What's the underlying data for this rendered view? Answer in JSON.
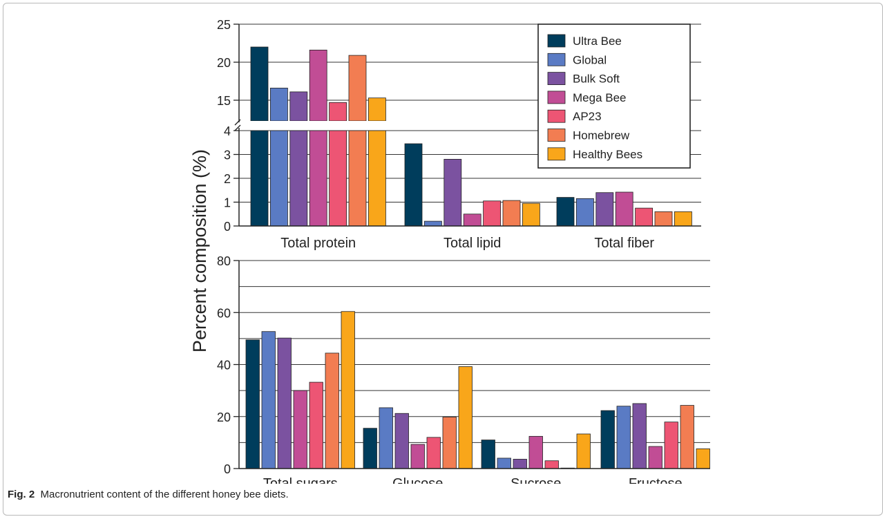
{
  "figure": {
    "caption_label": "Fig. 2",
    "caption_text": "Macronutrient content of the different honey bee diets."
  },
  "shared": {
    "ylabel": "Percent composition (%)",
    "series": [
      {
        "name": "Ultra Bee",
        "color": "#003d5c"
      },
      {
        "name": "Global",
        "color": "#5a7bc4"
      },
      {
        "name": "Bulk Soft",
        "color": "#7b52a0"
      },
      {
        "name": "Mega Bee",
        "color": "#c14d95"
      },
      {
        "name": "AP23",
        "color": "#ed5574"
      },
      {
        "name": "Homebrew",
        "color": "#f27d52"
      },
      {
        "name": "Healthy Bees",
        "color": "#f9a61a"
      }
    ],
    "legend_position": "top-right"
  },
  "chart_data": [
    {
      "type": "bar",
      "categories": [
        "Total protein",
        "Total lipid",
        "Total fiber"
      ],
      "y_axis_break": {
        "lower": [
          0,
          4
        ],
        "upper": [
          13,
          25
        ]
      },
      "lower_ticks": [
        "0",
        "1",
        "2",
        "3",
        "4"
      ],
      "upper_ticks": [
        "15",
        "20",
        "25"
      ],
      "grid": true,
      "series": [
        {
          "name": "Ultra Bee",
          "values": [
            22.0,
            3.45,
            1.2
          ]
        },
        {
          "name": "Global",
          "values": [
            16.6,
            0.2,
            1.15
          ]
        },
        {
          "name": "Bulk Soft",
          "values": [
            16.1,
            2.8,
            1.4
          ]
        },
        {
          "name": "Mega Bee",
          "values": [
            21.6,
            0.5,
            1.42
          ]
        },
        {
          "name": "AP23",
          "values": [
            14.7,
            1.05,
            0.75
          ]
        },
        {
          "name": "Homebrew",
          "values": [
            20.9,
            1.07,
            0.6
          ]
        },
        {
          "name": "Healthy Bees",
          "values": [
            15.3,
            0.95,
            0.6
          ]
        }
      ]
    },
    {
      "type": "bar",
      "categories": [
        "Total sugars",
        "Glucose",
        "Sucrose",
        "Fructose"
      ],
      "ylim": [
        0,
        80
      ],
      "ticks": [
        "0",
        "20",
        "40",
        "60",
        "80"
      ],
      "grid": true,
      "series": [
        {
          "name": "Ultra Bee",
          "values": [
            49.5,
            15.5,
            11.0,
            22.3
          ]
        },
        {
          "name": "Global",
          "values": [
            52.7,
            23.4,
            4.0,
            24.0
          ]
        },
        {
          "name": "Bulk Soft",
          "values": [
            50.2,
            21.2,
            3.6,
            25.0
          ]
        },
        {
          "name": "Mega Bee",
          "values": [
            30.0,
            9.3,
            12.4,
            8.5
          ]
        },
        {
          "name": "AP23",
          "values": [
            33.2,
            12.0,
            3.0,
            17.9
          ]
        },
        {
          "name": "Homebrew",
          "values": [
            44.4,
            19.8,
            0.2,
            24.3
          ]
        },
        {
          "name": "Healthy Bees",
          "values": [
            60.4,
            39.2,
            13.3,
            7.6
          ]
        }
      ]
    }
  ]
}
